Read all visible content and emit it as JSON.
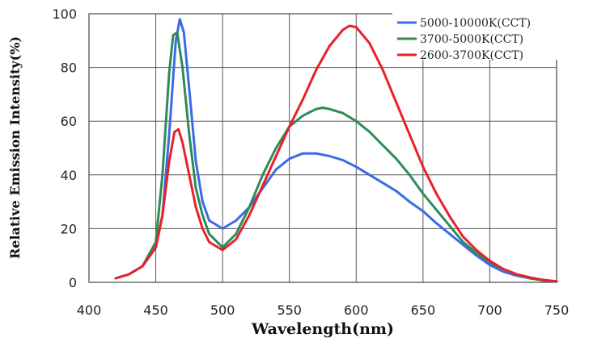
{
  "chart_data": {
    "type": "line",
    "title": "",
    "xlabel": "Wavelength(nm)",
    "ylabel": "Relative Emission Intensity(%)",
    "xlim": [
      400,
      750
    ],
    "ylim": [
      0,
      100
    ],
    "xticks": [
      "400",
      "450",
      "500",
      "550",
      "600",
      "650",
      "700",
      "750"
    ],
    "yticks": [
      "0",
      "20",
      "40",
      "60",
      "80",
      "100"
    ],
    "grid": true,
    "legend_position": "top-right",
    "series": [
      {
        "name": "5000-10000K(CCT)",
        "color": "#3b6be6",
        "points": [
          [
            420,
            1.5
          ],
          [
            430,
            3
          ],
          [
            440,
            6
          ],
          [
            450,
            13
          ],
          [
            455,
            25
          ],
          [
            460,
            55
          ],
          [
            465,
            90
          ],
          [
            468,
            98
          ],
          [
            471,
            93
          ],
          [
            475,
            72
          ],
          [
            480,
            45
          ],
          [
            485,
            30
          ],
          [
            490,
            23
          ],
          [
            500,
            20
          ],
          [
            510,
            23
          ],
          [
            520,
            28
          ],
          [
            530,
            35
          ],
          [
            540,
            42
          ],
          [
            550,
            46
          ],
          [
            560,
            48
          ],
          [
            570,
            48
          ],
          [
            580,
            47
          ],
          [
            590,
            45.5
          ],
          [
            600,
            43
          ],
          [
            610,
            40
          ],
          [
            620,
            37
          ],
          [
            630,
            34
          ],
          [
            640,
            30
          ],
          [
            650,
            26.5
          ],
          [
            660,
            22
          ],
          [
            670,
            18
          ],
          [
            680,
            14
          ],
          [
            690,
            10
          ],
          [
            700,
            6.5
          ],
          [
            710,
            4
          ],
          [
            720,
            2.5
          ],
          [
            730,
            1.5
          ],
          [
            740,
            0.8
          ],
          [
            750,
            0.3
          ]
        ]
      },
      {
        "name": "3700-5000K(CCT)",
        "color": "#2e8b57",
        "points": [
          [
            420,
            1.5
          ],
          [
            430,
            3
          ],
          [
            440,
            6
          ],
          [
            450,
            15
          ],
          [
            455,
            40
          ],
          [
            460,
            78
          ],
          [
            463,
            92
          ],
          [
            466,
            93
          ],
          [
            470,
            80
          ],
          [
            475,
            55
          ],
          [
            480,
            35
          ],
          [
            485,
            25
          ],
          [
            490,
            18
          ],
          [
            500,
            13
          ],
          [
            510,
            18
          ],
          [
            520,
            28
          ],
          [
            530,
            40
          ],
          [
            540,
            50
          ],
          [
            550,
            58
          ],
          [
            560,
            62
          ],
          [
            570,
            64.5
          ],
          [
            575,
            65
          ],
          [
            580,
            64.5
          ],
          [
            590,
            63
          ],
          [
            600,
            60
          ],
          [
            610,
            56
          ],
          [
            620,
            51
          ],
          [
            630,
            46
          ],
          [
            640,
            40
          ],
          [
            650,
            33
          ],
          [
            660,
            27
          ],
          [
            670,
            21
          ],
          [
            680,
            15
          ],
          [
            690,
            11
          ],
          [
            700,
            7.5
          ],
          [
            710,
            5
          ],
          [
            720,
            3
          ],
          [
            730,
            1.5
          ],
          [
            740,
            0.7
          ],
          [
            750,
            0.3
          ]
        ]
      },
      {
        "name": "2600-3700K(CCT)",
        "color": "#e8212a",
        "points": [
          [
            420,
            1.5
          ],
          [
            430,
            3
          ],
          [
            440,
            6
          ],
          [
            450,
            13
          ],
          [
            455,
            25
          ],
          [
            460,
            45
          ],
          [
            464,
            56
          ],
          [
            467,
            57
          ],
          [
            470,
            52
          ],
          [
            475,
            40
          ],
          [
            480,
            28
          ],
          [
            485,
            20
          ],
          [
            490,
            15
          ],
          [
            500,
            12
          ],
          [
            510,
            16
          ],
          [
            520,
            25
          ],
          [
            530,
            36
          ],
          [
            540,
            47
          ],
          [
            550,
            58
          ],
          [
            560,
            68
          ],
          [
            570,
            79
          ],
          [
            580,
            88
          ],
          [
            590,
            94
          ],
          [
            595,
            95.5
          ],
          [
            600,
            95
          ],
          [
            610,
            89
          ],
          [
            620,
            79
          ],
          [
            630,
            67
          ],
          [
            640,
            55
          ],
          [
            650,
            43
          ],
          [
            660,
            33
          ],
          [
            670,
            24.5
          ],
          [
            680,
            17
          ],
          [
            690,
            12
          ],
          [
            700,
            8
          ],
          [
            710,
            5
          ],
          [
            720,
            3
          ],
          [
            730,
            1.8
          ],
          [
            740,
            0.9
          ],
          [
            750,
            0.4
          ]
        ]
      }
    ]
  }
}
